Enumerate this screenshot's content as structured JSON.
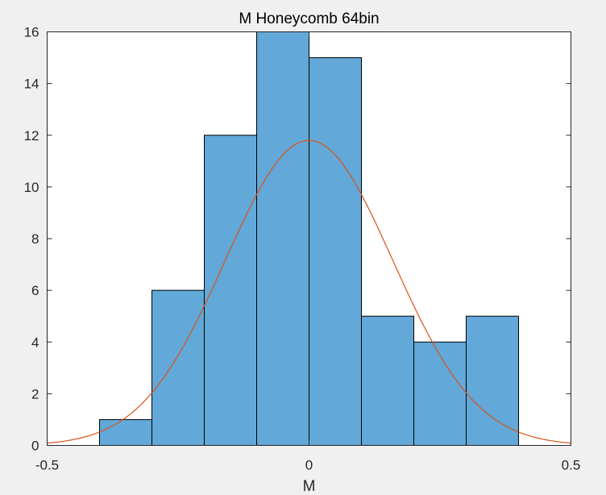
{
  "chart_data": {
    "type": "bar",
    "title": "M Honeycomb 64bin",
    "xlabel": "M",
    "ylabel": "",
    "xlim": [
      -0.5,
      0.5
    ],
    "ylim": [
      0,
      16
    ],
    "xticks": [
      -0.5,
      0,
      0.5
    ],
    "xtick_labels": [
      "-0.5",
      "0",
      "0.5"
    ],
    "yticks": [
      0,
      2,
      4,
      6,
      8,
      10,
      12,
      14,
      16
    ],
    "ytick_labels": [
      "0",
      "2",
      "4",
      "6",
      "8",
      "10",
      "12",
      "14",
      "16"
    ],
    "bin_edges": [
      -0.4,
      -0.3,
      -0.2,
      -0.1,
      0.0,
      0.1,
      0.2,
      0.3,
      0.4
    ],
    "counts": [
      1,
      6,
      12,
      16,
      15,
      5,
      4,
      5
    ],
    "fit_curve": {
      "type": "normal",
      "mean": 0.0,
      "sigma": 0.16,
      "peak": 11.8
    },
    "grid": false,
    "colors": {
      "bar_fill": "#62a8d8",
      "bar_edge": "#000000",
      "curve": "#d95319",
      "axes_bg": "#ffffff",
      "figure_bg": "#f0f0f0"
    }
  }
}
